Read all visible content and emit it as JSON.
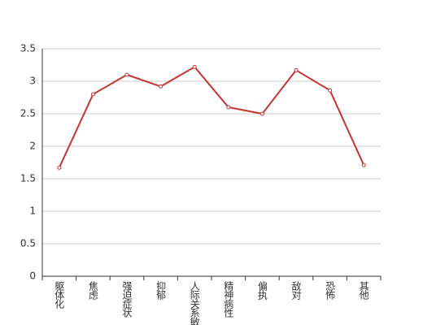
{
  "chart_data": {
    "type": "line",
    "categories": [
      "躯体化",
      "焦虑",
      "强迫症状",
      "抑郁",
      "人际关系敏感",
      "精神病性",
      "偏执",
      "敌对",
      "恐怖",
      "其他"
    ],
    "values": [
      1.67,
      2.8,
      3.1,
      2.92,
      3.22,
      2.6,
      2.5,
      3.17,
      2.86,
      1.71
    ],
    "color": "#c23531",
    "ylim": [
      0,
      3.5
    ],
    "yticks": [
      0,
      0.5,
      1,
      1.5,
      2,
      2.5,
      3,
      3.5
    ],
    "grid": true
  }
}
